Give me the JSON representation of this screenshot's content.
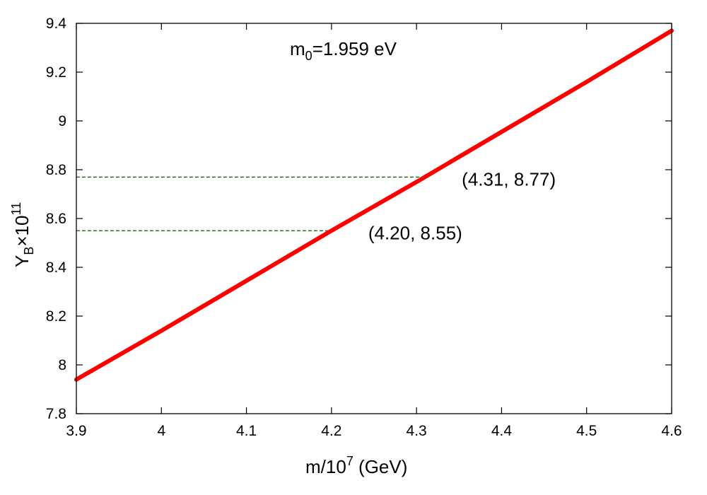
{
  "chart_data": {
    "type": "line",
    "title": {
      "main": "m",
      "sub": "0",
      "rest": "=1.959 eV"
    },
    "xlabel": {
      "pre": "m/10",
      "sup": "7",
      "post": " (GeV)"
    },
    "ylabel": {
      "main": "Y",
      "sub": "B",
      "mid": "×10",
      "sup": "11"
    },
    "xlim": [
      3.9,
      4.6
    ],
    "ylim": [
      7.8,
      9.4
    ],
    "xticks": [
      "3.9",
      "4",
      "4.1",
      "4.2",
      "4.3",
      "4.4",
      "4.5",
      "4.6"
    ],
    "xtick_values": [
      3.9,
      4.0,
      4.1,
      4.2,
      4.3,
      4.4,
      4.5,
      4.6
    ],
    "yticks": [
      "7.8",
      "8",
      "8.2",
      "8.4",
      "8.6",
      "8.8",
      "9",
      "9.2",
      "9.4"
    ],
    "ytick_values": [
      7.8,
      8.0,
      8.2,
      8.4,
      8.6,
      8.8,
      9.0,
      9.2,
      9.4
    ],
    "series": [
      {
        "color": "#ff0000",
        "x": [
          3.9,
          4.0,
          4.1,
          4.2,
          4.3,
          4.4,
          4.5,
          4.6
        ],
        "y": [
          7.94,
          8.14,
          8.345,
          8.55,
          8.75,
          8.955,
          9.16,
          9.37
        ]
      }
    ],
    "reference_lines": [
      {
        "x": 4.31,
        "y": 8.77,
        "color": "#006400",
        "label": "(4.31, 8.77)"
      },
      {
        "x": 4.2,
        "y": 8.55,
        "color": "#006400",
        "label": "(4.20, 8.55)"
      }
    ],
    "grid": false,
    "legend": "none"
  }
}
